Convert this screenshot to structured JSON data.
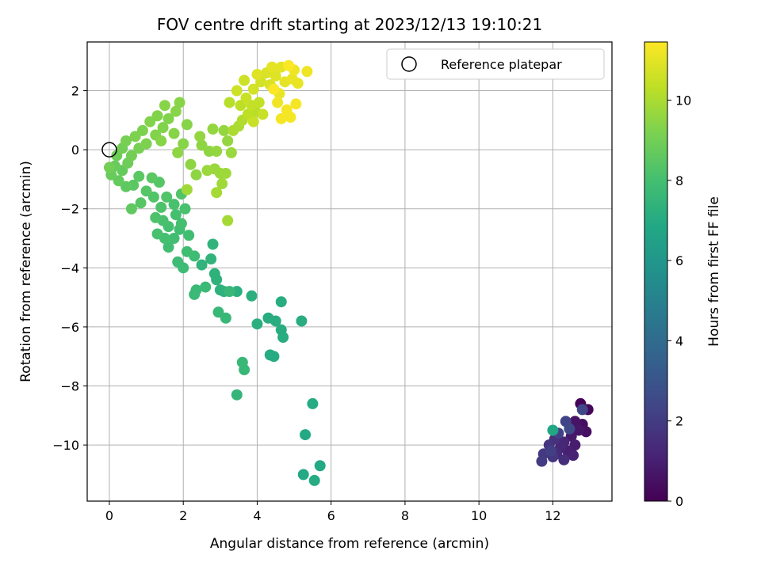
{
  "chart_data": {
    "type": "scatter",
    "title": "FOV centre drift starting at 2023/12/13 19:10:21",
    "xlabel": "Angular distance from reference (arcmin)",
    "ylabel": "Rotation from reference (arcmin)",
    "xlim": [
      -0.6,
      13.6
    ],
    "ylim": [
      -11.9,
      3.65
    ],
    "xticks": [
      0,
      2,
      4,
      6,
      8,
      10,
      12
    ],
    "yticks": [
      2,
      0,
      -2,
      -4,
      -6,
      -8,
      -10
    ],
    "tick_labels_x": [
      "0",
      "2",
      "4",
      "6",
      "8",
      "10",
      "12"
    ],
    "tick_labels_y": [
      "2",
      "0",
      "−2",
      "−4",
      "−6",
      "−8",
      "−10"
    ],
    "grid": true,
    "legend": {
      "placement": "top-right",
      "label": "Reference platepar"
    },
    "reference_point": {
      "x": 0,
      "y": 0
    },
    "colorbar": {
      "label": "Hours from first FF file",
      "range": [
        0,
        11.45
      ],
      "ticks": [
        0,
        2,
        4,
        6,
        8,
        10
      ],
      "tick_labels": [
        "0",
        "2",
        "4",
        "6",
        "8",
        "10"
      ],
      "colormap": "viridis"
    },
    "points": [
      {
        "x": 12.75,
        "y": -8.6,
        "h": 0.1
      },
      {
        "x": 12.95,
        "y": -8.8,
        "h": 0.2
      },
      {
        "x": 12.8,
        "y": -9.3,
        "h": 0.4
      },
      {
        "x": 12.9,
        "y": -9.55,
        "h": 0.5
      },
      {
        "x": 12.6,
        "y": -9.2,
        "h": 0.6
      },
      {
        "x": 12.7,
        "y": -9.5,
        "h": 0.7
      },
      {
        "x": 12.5,
        "y": -9.7,
        "h": 0.8
      },
      {
        "x": 12.6,
        "y": -10.0,
        "h": 0.9
      },
      {
        "x": 12.4,
        "y": -10.2,
        "h": 1.0
      },
      {
        "x": 12.55,
        "y": -10.35,
        "h": 1.1
      },
      {
        "x": 12.3,
        "y": -9.9,
        "h": 1.2
      },
      {
        "x": 12.2,
        "y": -10.1,
        "h": 1.3
      },
      {
        "x": 12.1,
        "y": -10.3,
        "h": 1.4
      },
      {
        "x": 12.3,
        "y": -10.5,
        "h": 1.5
      },
      {
        "x": 12.05,
        "y": -9.8,
        "h": 1.6
      },
      {
        "x": 11.9,
        "y": -10.0,
        "h": 1.7
      },
      {
        "x": 12.0,
        "y": -10.4,
        "h": 1.8
      },
      {
        "x": 11.75,
        "y": -10.3,
        "h": 1.9
      },
      {
        "x": 11.7,
        "y": -10.55,
        "h": 2.0
      },
      {
        "x": 11.95,
        "y": -10.2,
        "h": 2.1
      },
      {
        "x": 12.15,
        "y": -9.6,
        "h": 2.2
      },
      {
        "x": 12.35,
        "y": -9.2,
        "h": 2.3
      },
      {
        "x": 12.8,
        "y": -8.8,
        "h": 2.4
      },
      {
        "x": 12.45,
        "y": -9.45,
        "h": 2.5
      },
      {
        "x": 12.0,
        "y": -9.5,
        "h": 6.8
      },
      {
        "x": 5.7,
        "y": -10.7,
        "h": 6.9
      },
      {
        "x": 5.55,
        "y": -11.2,
        "h": 7.0
      },
      {
        "x": 5.25,
        "y": -11.0,
        "h": 6.9
      },
      {
        "x": 5.3,
        "y": -9.65,
        "h": 6.9
      },
      {
        "x": 5.5,
        "y": -8.6,
        "h": 7.0
      },
      {
        "x": 4.35,
        "y": -6.95,
        "h": 7.0
      },
      {
        "x": 4.45,
        "y": -7.0,
        "h": 7.0
      },
      {
        "x": 4.7,
        "y": -6.35,
        "h": 7.1
      },
      {
        "x": 4.65,
        "y": -6.1,
        "h": 7.1
      },
      {
        "x": 4.5,
        "y": -5.8,
        "h": 7.1
      },
      {
        "x": 4.3,
        "y": -5.7,
        "h": 7.1
      },
      {
        "x": 5.2,
        "y": -5.8,
        "h": 7.1
      },
      {
        "x": 4.65,
        "y": -5.15,
        "h": 7.1
      },
      {
        "x": 4.0,
        "y": -5.9,
        "h": 7.2
      },
      {
        "x": 3.85,
        "y": -4.95,
        "h": 7.2
      },
      {
        "x": 3.45,
        "y": -4.8,
        "h": 7.2
      },
      {
        "x": 3.1,
        "y": -4.8,
        "h": 7.3
      },
      {
        "x": 2.9,
        "y": -4.4,
        "h": 7.3
      },
      {
        "x": 2.85,
        "y": -4.2,
        "h": 7.3
      },
      {
        "x": 3.0,
        "y": -4.75,
        "h": 7.3
      },
      {
        "x": 2.75,
        "y": -3.7,
        "h": 7.4
      },
      {
        "x": 2.8,
        "y": -3.2,
        "h": 7.4
      },
      {
        "x": 2.5,
        "y": -3.9,
        "h": 7.4
      },
      {
        "x": 3.45,
        "y": -8.3,
        "h": 7.5
      },
      {
        "x": 3.6,
        "y": -7.2,
        "h": 7.6
      },
      {
        "x": 3.65,
        "y": -7.45,
        "h": 7.6
      },
      {
        "x": 2.95,
        "y": -5.5,
        "h": 7.6
      },
      {
        "x": 3.15,
        "y": -5.7,
        "h": 7.6
      },
      {
        "x": 3.25,
        "y": -4.8,
        "h": 7.6
      },
      {
        "x": 2.6,
        "y": -4.65,
        "h": 7.7
      },
      {
        "x": 2.35,
        "y": -4.75,
        "h": 7.7
      },
      {
        "x": 2.3,
        "y": -4.9,
        "h": 7.7
      },
      {
        "x": 2.0,
        "y": -4.0,
        "h": 7.8
      },
      {
        "x": 2.3,
        "y": -3.6,
        "h": 7.8
      },
      {
        "x": 1.85,
        "y": -3.8,
        "h": 7.8
      },
      {
        "x": 2.1,
        "y": -3.45,
        "h": 7.9
      },
      {
        "x": 1.6,
        "y": -3.3,
        "h": 7.9
      },
      {
        "x": 1.75,
        "y": -3.0,
        "h": 7.9
      },
      {
        "x": 2.15,
        "y": -2.9,
        "h": 7.9
      },
      {
        "x": 1.9,
        "y": -2.7,
        "h": 7.9
      },
      {
        "x": 1.5,
        "y": -3.0,
        "h": 8.0
      },
      {
        "x": 1.6,
        "y": -2.6,
        "h": 8.0
      },
      {
        "x": 1.95,
        "y": -2.5,
        "h": 8.0
      },
      {
        "x": 1.8,
        "y": -2.2,
        "h": 8.0
      },
      {
        "x": 1.3,
        "y": -2.85,
        "h": 8.1
      },
      {
        "x": 1.45,
        "y": -2.4,
        "h": 8.1
      },
      {
        "x": 2.05,
        "y": -2.0,
        "h": 8.1
      },
      {
        "x": 1.75,
        "y": -1.85,
        "h": 8.1
      },
      {
        "x": 1.4,
        "y": -1.95,
        "h": 8.2
      },
      {
        "x": 1.25,
        "y": -2.3,
        "h": 8.2
      },
      {
        "x": 1.2,
        "y": -1.6,
        "h": 8.3
      },
      {
        "x": 1.55,
        "y": -1.6,
        "h": 8.3
      },
      {
        "x": 1.95,
        "y": -1.5,
        "h": 8.3
      },
      {
        "x": 0.85,
        "y": -1.8,
        "h": 8.4
      },
      {
        "x": 1.0,
        "y": -1.4,
        "h": 8.4
      },
      {
        "x": 1.35,
        "y": -1.1,
        "h": 8.4
      },
      {
        "x": 0.65,
        "y": -1.2,
        "h": 8.5
      },
      {
        "x": 0.8,
        "y": -0.9,
        "h": 8.5
      },
      {
        "x": 1.15,
        "y": -0.95,
        "h": 8.5
      },
      {
        "x": 0.6,
        "y": -2.0,
        "h": 8.6
      },
      {
        "x": 0.45,
        "y": -1.25,
        "h": 8.6
      },
      {
        "x": 0.25,
        "y": -1.05,
        "h": 8.7
      },
      {
        "x": 0.35,
        "y": -0.7,
        "h": 8.7
      },
      {
        "x": 0.15,
        "y": -0.55,
        "h": 8.8
      },
      {
        "x": 0.05,
        "y": -0.85,
        "h": 8.8
      },
      {
        "x": 0.5,
        "y": -0.45,
        "h": 8.9
      },
      {
        "x": 0.2,
        "y": -0.2,
        "h": 8.9
      },
      {
        "x": 0.0,
        "y": -0.6,
        "h": 9.0
      },
      {
        "x": 0.35,
        "y": 0.05,
        "h": 9.0
      },
      {
        "x": 0.6,
        "y": -0.2,
        "h": 9.0
      },
      {
        "x": 0.45,
        "y": 0.3,
        "h": 9.1
      },
      {
        "x": 0.8,
        "y": 0.05,
        "h": 9.1
      },
      {
        "x": 0.7,
        "y": 0.45,
        "h": 9.2
      },
      {
        "x": 1.0,
        "y": 0.2,
        "h": 9.2
      },
      {
        "x": 0.9,
        "y": 0.65,
        "h": 9.2
      },
      {
        "x": 1.25,
        "y": 0.5,
        "h": 9.3
      },
      {
        "x": 1.1,
        "y": 0.95,
        "h": 9.3
      },
      {
        "x": 1.45,
        "y": 0.75,
        "h": 9.3
      },
      {
        "x": 1.6,
        "y": 1.05,
        "h": 9.3
      },
      {
        "x": 1.3,
        "y": 1.15,
        "h": 9.3
      },
      {
        "x": 1.5,
        "y": 1.5,
        "h": 9.4
      },
      {
        "x": 1.8,
        "y": 1.3,
        "h": 9.4
      },
      {
        "x": 1.9,
        "y": 1.6,
        "h": 9.4
      },
      {
        "x": 2.1,
        "y": 0.85,
        "h": 9.4
      },
      {
        "x": 1.75,
        "y": 0.55,
        "h": 9.4
      },
      {
        "x": 2.0,
        "y": 0.2,
        "h": 9.4
      },
      {
        "x": 1.4,
        "y": 0.3,
        "h": 9.4
      },
      {
        "x": 1.85,
        "y": -0.1,
        "h": 9.5
      },
      {
        "x": 2.2,
        "y": -0.5,
        "h": 9.5
      },
      {
        "x": 2.5,
        "y": 0.15,
        "h": 9.5
      },
      {
        "x": 2.7,
        "y": -0.05,
        "h": 9.5
      },
      {
        "x": 2.35,
        "y": -0.85,
        "h": 9.5
      },
      {
        "x": 2.45,
        "y": 0.45,
        "h": 9.6
      },
      {
        "x": 2.8,
        "y": 0.7,
        "h": 9.6
      },
      {
        "x": 3.1,
        "y": 0.65,
        "h": 9.6
      },
      {
        "x": 3.2,
        "y": 0.3,
        "h": 9.6
      },
      {
        "x": 2.9,
        "y": -0.05,
        "h": 9.6
      },
      {
        "x": 3.3,
        "y": -0.1,
        "h": 9.7
      },
      {
        "x": 2.85,
        "y": -0.65,
        "h": 9.7
      },
      {
        "x": 3.0,
        "y": -0.8,
        "h": 9.7
      },
      {
        "x": 2.65,
        "y": -0.7,
        "h": 9.7
      },
      {
        "x": 3.15,
        "y": -0.8,
        "h": 9.8
      },
      {
        "x": 2.1,
        "y": -1.35,
        "h": 9.8
      },
      {
        "x": 3.05,
        "y": -1.15,
        "h": 9.8
      },
      {
        "x": 2.9,
        "y": -1.45,
        "h": 9.9
      },
      {
        "x": 3.2,
        "y": -2.4,
        "h": 9.9
      },
      {
        "x": 3.35,
        "y": 0.65,
        "h": 10.0
      },
      {
        "x": 3.5,
        "y": 0.8,
        "h": 10.0
      },
      {
        "x": 3.6,
        "y": 1.0,
        "h": 10.1
      },
      {
        "x": 3.95,
        "y": 1.3,
        "h": 10.2
      },
      {
        "x": 3.25,
        "y": 1.6,
        "h": 10.2
      },
      {
        "x": 3.55,
        "y": 1.5,
        "h": 10.3
      },
      {
        "x": 3.75,
        "y": 1.2,
        "h": 10.3
      },
      {
        "x": 3.85,
        "y": 1.5,
        "h": 10.4
      },
      {
        "x": 4.05,
        "y": 1.6,
        "h": 10.4
      },
      {
        "x": 3.9,
        "y": 0.95,
        "h": 10.5
      },
      {
        "x": 4.15,
        "y": 1.2,
        "h": 10.5
      },
      {
        "x": 3.7,
        "y": 1.75,
        "h": 10.5
      },
      {
        "x": 3.45,
        "y": 2.0,
        "h": 10.6
      },
      {
        "x": 3.65,
        "y": 2.35,
        "h": 10.6
      },
      {
        "x": 3.9,
        "y": 2.05,
        "h": 10.7
      },
      {
        "x": 4.1,
        "y": 2.3,
        "h": 10.7
      },
      {
        "x": 4.35,
        "y": 2.2,
        "h": 10.8
      },
      {
        "x": 4.25,
        "y": 2.6,
        "h": 10.8
      },
      {
        "x": 4.5,
        "y": 2.5,
        "h": 10.9
      },
      {
        "x": 4.0,
        "y": 2.55,
        "h": 10.9
      },
      {
        "x": 4.65,
        "y": 2.8,
        "h": 11.0
      },
      {
        "x": 4.4,
        "y": 2.8,
        "h": 11.0
      },
      {
        "x": 4.75,
        "y": 2.3,
        "h": 11.0
      },
      {
        "x": 4.6,
        "y": 1.9,
        "h": 11.1
      },
      {
        "x": 4.95,
        "y": 2.4,
        "h": 11.1
      },
      {
        "x": 5.1,
        "y": 2.25,
        "h": 11.1
      },
      {
        "x": 5.0,
        "y": 2.7,
        "h": 11.2
      },
      {
        "x": 5.35,
        "y": 2.65,
        "h": 11.2
      },
      {
        "x": 4.55,
        "y": 1.6,
        "h": 11.2
      },
      {
        "x": 4.8,
        "y": 1.35,
        "h": 11.3
      },
      {
        "x": 4.9,
        "y": 1.1,
        "h": 11.3
      },
      {
        "x": 4.65,
        "y": 1.05,
        "h": 11.3
      },
      {
        "x": 5.05,
        "y": 1.55,
        "h": 11.3
      },
      {
        "x": 4.45,
        "y": 2.05,
        "h": 11.4
      },
      {
        "x": 4.85,
        "y": 2.85,
        "h": 11.4
      }
    ]
  }
}
